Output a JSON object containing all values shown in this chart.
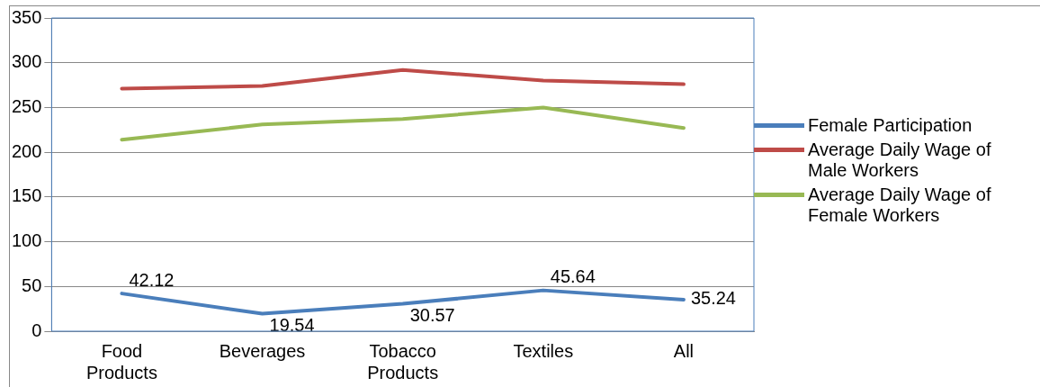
{
  "chart_data": {
    "type": "line",
    "categories": [
      "Food Products",
      "Beverages",
      "Tobacco Products",
      "Textiles",
      "All"
    ],
    "series": [
      {
        "name": "Female Participation",
        "color": "#4a7ebb",
        "values": [
          42.12,
          19.54,
          30.57,
          45.64,
          35.24
        ],
        "value_labels": [
          "42.12",
          "19.54",
          "30.57",
          "45.64",
          "35.24"
        ]
      },
      {
        "name": "Average Daily Wage of Male Workers",
        "color": "#be4b48",
        "values": [
          271,
          274,
          292,
          280,
          276
        ]
      },
      {
        "name": "Average Daily Wage of Female Workers",
        "color": "#98b954",
        "values": [
          214,
          231,
          237,
          250,
          227
        ]
      }
    ],
    "ylim": [
      0,
      350
    ],
    "yticks": [
      0,
      50,
      100,
      150,
      200,
      250,
      300,
      350
    ],
    "grid": "y",
    "legend": "right",
    "marker": "none",
    "line_style": "solid"
  }
}
